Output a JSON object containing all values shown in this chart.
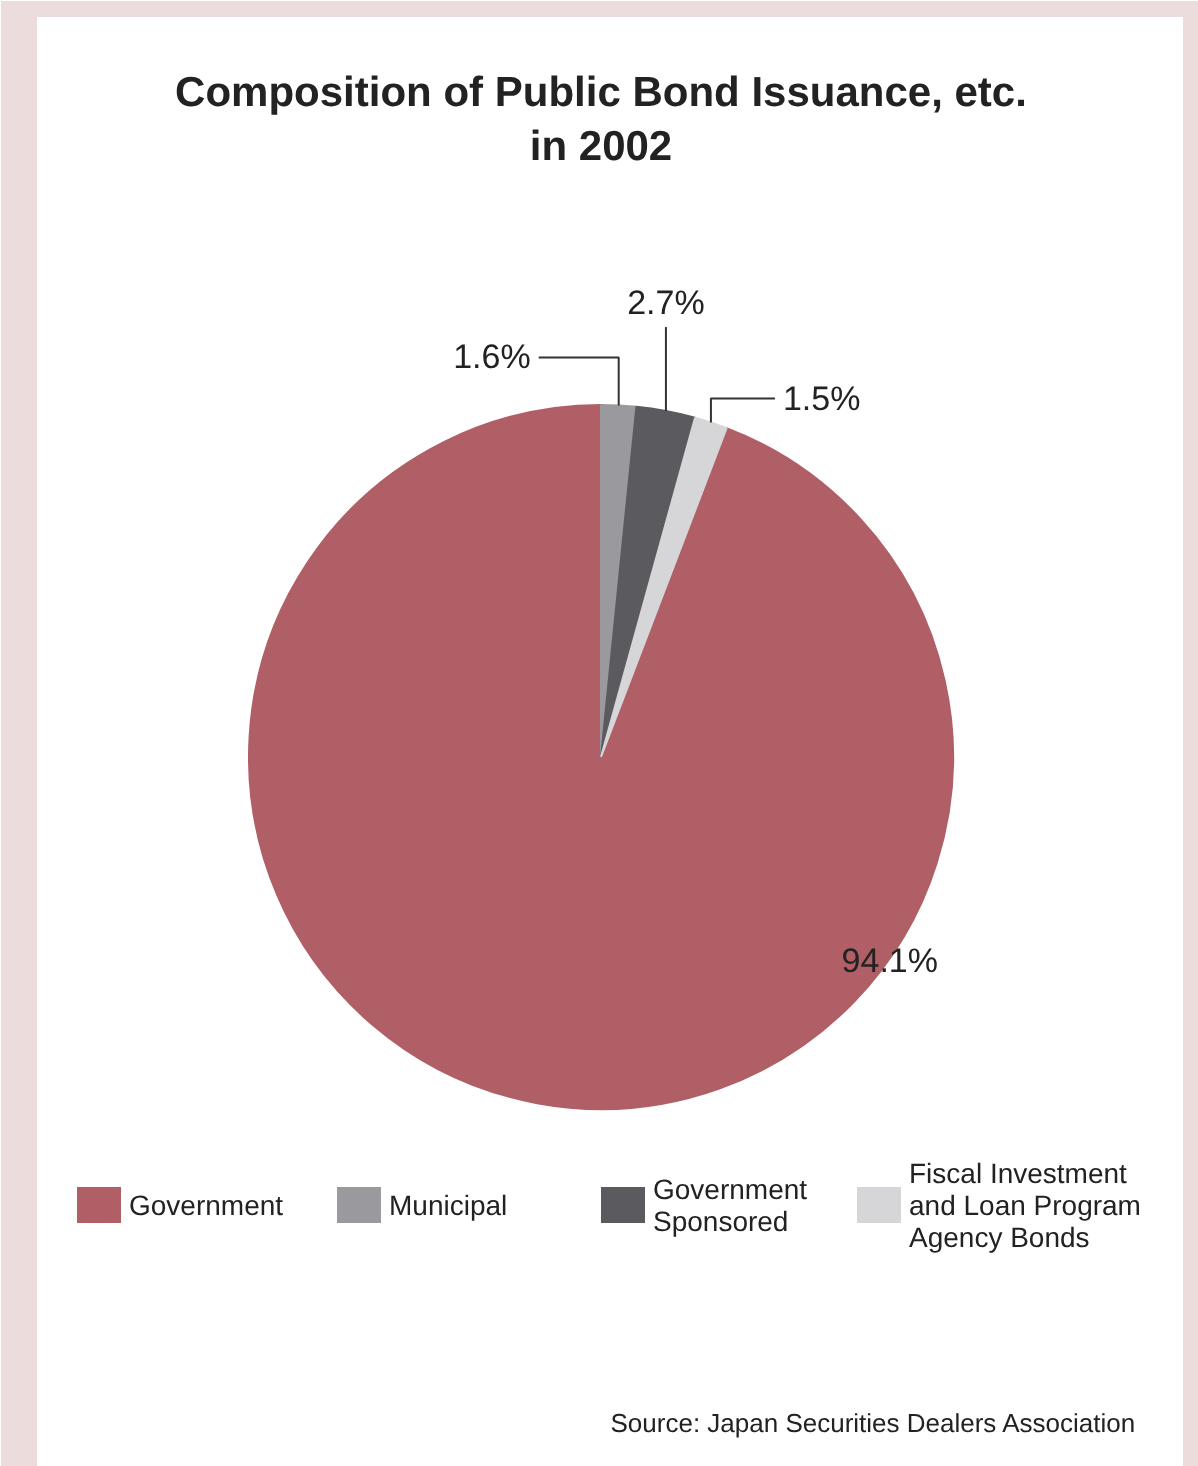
{
  "chart_data": {
    "type": "pie",
    "title": "Composition of Public Bond Issuance, etc.\nin 2002",
    "categories": [
      "Government",
      "Municipal",
      "Government Sponsored",
      "Fiscal Investment and Loan Program Agency Bonds"
    ],
    "values": [
      94.1,
      1.6,
      2.7,
      1.5
    ],
    "colors": [
      "#b05f66",
      "#9a9a9e",
      "#5b5b5f",
      "#d6d6d8"
    ],
    "value_labels": [
      "94.1%",
      "1.6%",
      "2.7%",
      "1.5%"
    ],
    "legend": "bottom",
    "annotations": [
      "Source:   Japan Securities Dealers Association"
    ]
  }
}
